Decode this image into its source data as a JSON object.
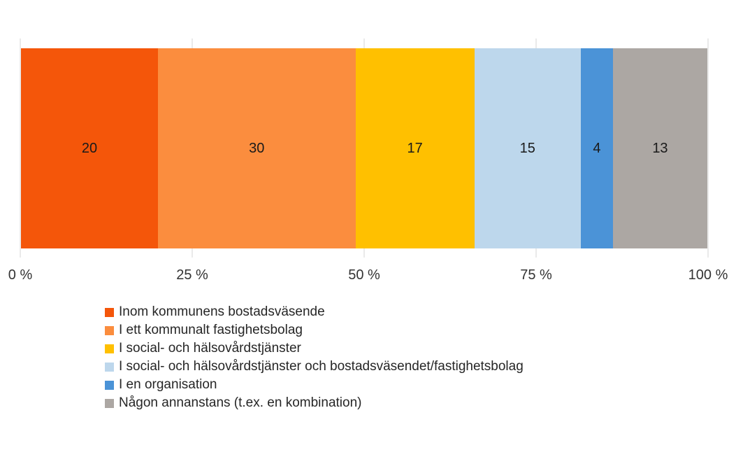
{
  "chart_data": {
    "type": "bar",
    "variant": "horizontal-100pct-stacked",
    "title": "",
    "xlabel": "",
    "ylabel": "",
    "categories": [
      "single-bar"
    ],
    "series": [
      {
        "name": "Inom kommunens bostadsväsende",
        "value": 20,
        "color": "#F4560A"
      },
      {
        "name": "I ett kommunalt fastighetsbolag",
        "value": 30,
        "color": "#FB8D3E"
      },
      {
        "name": "I social- och hälsovårdstjänster",
        "value": 17,
        "color": "#FFC000"
      },
      {
        "name": "I social- och hälsovårdstjänster och bostadsväsendet/fastighetsbolag",
        "value": 15,
        "color": "#BDD7EC"
      },
      {
        "name": "I en organisation",
        "value": 4,
        "color": "#4B93D7"
      },
      {
        "name": "Någon annanstans (t.ex. en kombination)",
        "value": 13,
        "color": "#ACA7A3"
      }
    ],
    "data_labels": [
      20,
      30,
      17,
      15,
      4,
      13
    ],
    "x_axis": {
      "range": [
        0,
        100
      ],
      "tick_values": [
        0,
        25,
        50,
        75,
        100
      ],
      "tick_labels": [
        "0 %",
        "25 %",
        "50 %",
        "75 %",
        "100 %"
      ]
    },
    "grid": true,
    "legend_position": "bottom"
  }
}
